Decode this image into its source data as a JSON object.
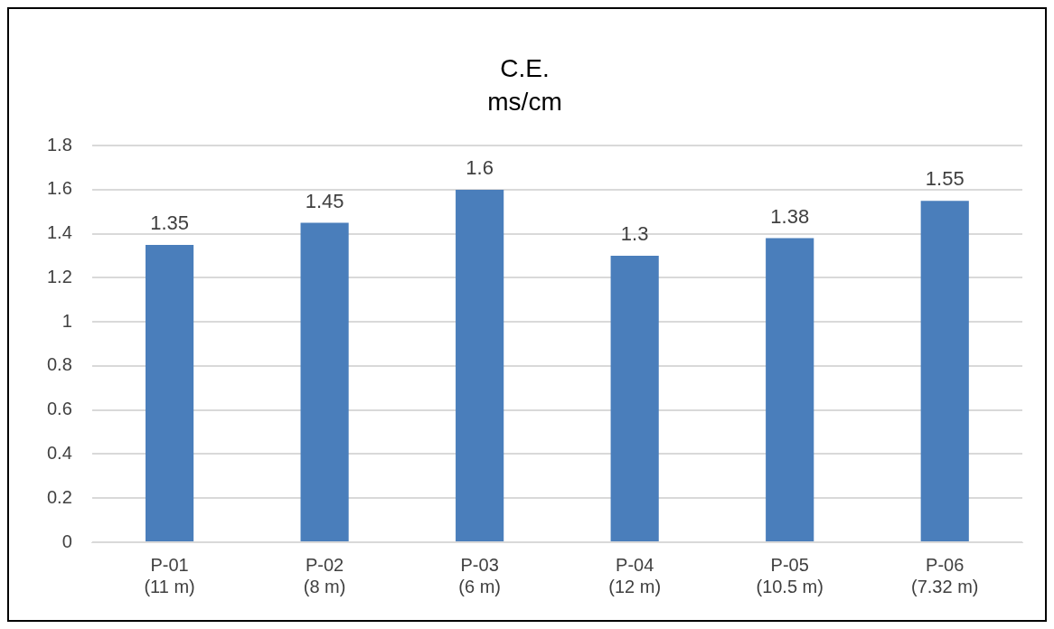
{
  "chart_data": {
    "type": "bar",
    "title": "C.E.",
    "subtitle": "ms/cm",
    "categories": [
      "P-01\n(11 m)",
      "P-02\n(8 m)",
      "P-03\n(6 m)",
      "P-04\n(12 m)",
      "P-05\n(10.5 m)",
      "P-06\n(7.32 m)"
    ],
    "values": [
      1.35,
      1.45,
      1.6,
      1.3,
      1.38,
      1.55
    ],
    "color": "#4a7ebb",
    "ylim": [
      0,
      1.8
    ],
    "yticks": [
      0,
      0.2,
      0.4,
      0.6,
      0.8,
      1,
      1.2,
      1.4,
      1.6,
      1.8
    ],
    "grid": "y",
    "data_labels": true,
    "legend": false
  }
}
